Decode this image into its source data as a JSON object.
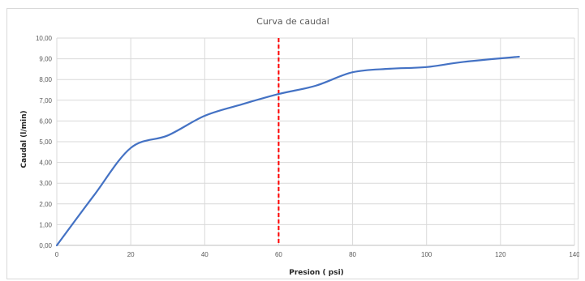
{
  "chart_data": {
    "type": "line",
    "title": "Curva de caudal",
    "xlabel": "Presion ( psi)",
    "ylabel": "Caudal (l/min)",
    "xlim": [
      0,
      140
    ],
    "ylim": [
      0,
      10
    ],
    "xticks": [
      "0",
      "20",
      "40",
      "60",
      "80",
      "100",
      "120",
      "140"
    ],
    "yticks": [
      "0,00",
      "1,00",
      "2,00",
      "3,00",
      "4,00",
      "5,00",
      "6,00",
      "7,00",
      "8,00",
      "9,00",
      "10,00"
    ],
    "grid": true,
    "legend": "none",
    "series": [
      {
        "color": "#4472c4",
        "x": [
          0,
          10,
          20,
          30,
          40,
          50,
          60,
          70,
          80,
          90,
          100,
          110,
          125
        ],
        "y": [
          0.0,
          2.4,
          4.7,
          5.3,
          6.25,
          6.8,
          7.3,
          7.7,
          8.35,
          8.52,
          8.6,
          8.85,
          9.1
        ]
      }
    ],
    "reference_line": {
      "x": 60,
      "color": "#ff0000",
      "style": "dashed"
    }
  }
}
